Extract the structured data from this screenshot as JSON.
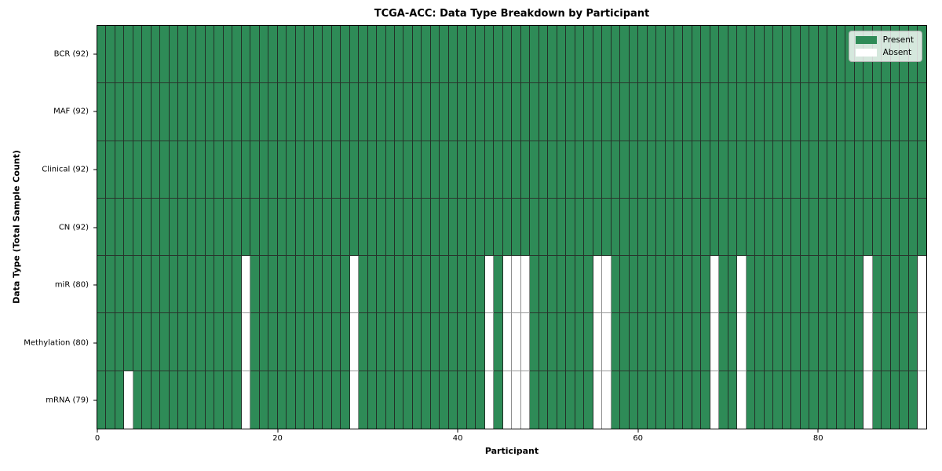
{
  "chart_data": {
    "type": "heatmap",
    "title": "TCGA-ACC: Data Type Breakdown by Participant",
    "xlabel": "Participant",
    "ylabel": "Data Type (Total Sample Count)",
    "x_ticks": [
      0,
      20,
      40,
      60,
      80
    ],
    "x_range": [
      0,
      92
    ],
    "n_participants": 92,
    "grid": false,
    "cell_colors": {
      "present": "#2e8b57",
      "absent": "#ffffff"
    },
    "legend": {
      "position": "upper right",
      "entries": [
        {
          "label": "Present",
          "color": "#2e8b57"
        },
        {
          "label": "Absent",
          "color": "#ffffff"
        }
      ]
    },
    "rows": [
      {
        "label": "BCR (92)",
        "data_type": "BCR",
        "total": 92,
        "absent_participants": []
      },
      {
        "label": "MAF (92)",
        "data_type": "MAF",
        "total": 92,
        "absent_participants": []
      },
      {
        "label": "Clinical (92)",
        "data_type": "Clinical",
        "total": 92,
        "absent_participants": []
      },
      {
        "label": "CN (92)",
        "data_type": "CN",
        "total": 92,
        "absent_participants": []
      },
      {
        "label": "miR (80)",
        "data_type": "miR",
        "total": 80,
        "absent_participants": [
          16,
          28,
          43,
          45,
          46,
          47,
          55,
          56,
          68,
          71,
          85,
          91
        ]
      },
      {
        "label": "Methylation (80)",
        "data_type": "Methylation",
        "total": 80,
        "absent_participants": [
          16,
          28,
          43,
          45,
          46,
          47,
          55,
          56,
          68,
          71,
          85,
          91
        ]
      },
      {
        "label": "mRNA (79)",
        "data_type": "mRNA",
        "total": 79,
        "absent_participants": [
          3,
          16,
          28,
          43,
          45,
          46,
          47,
          55,
          56,
          68,
          71,
          85,
          91
        ]
      }
    ]
  }
}
